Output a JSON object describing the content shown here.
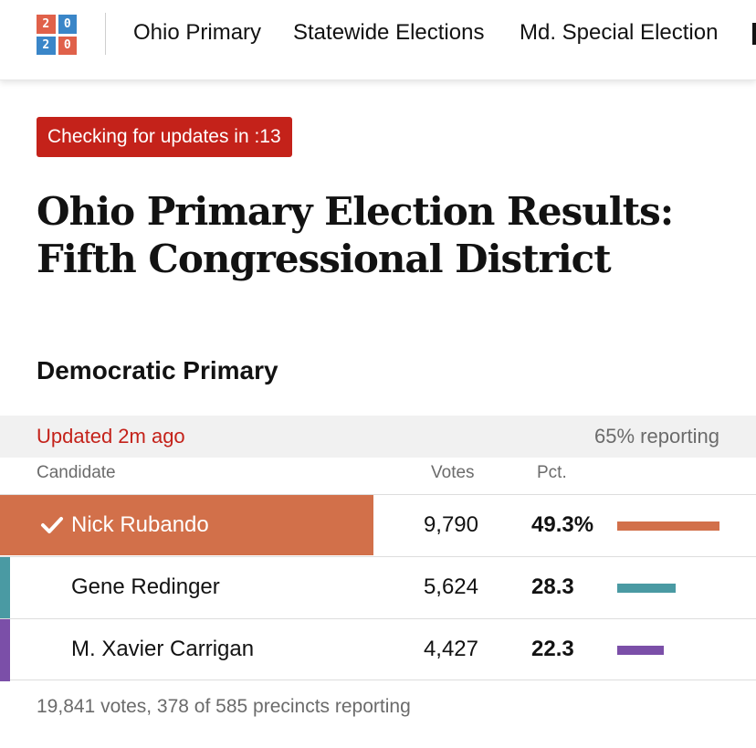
{
  "logo": {
    "digits": [
      "2",
      "0",
      "2",
      "0"
    ]
  },
  "nav": {
    "items": [
      "Ohio Primary",
      "Statewide Elections",
      "Md. Special Election"
    ]
  },
  "update_badge": "Checking for updates in :13",
  "headline": {
    "line1": "Ohio Primary Election Results:",
    "line2": "Fifth Congressional District"
  },
  "section_title": "Democratic Primary",
  "status": {
    "updated": "Updated 2m ago",
    "reporting": "65% reporting"
  },
  "columns": {
    "candidate": "Candidate",
    "votes": "Votes",
    "pct": "Pct."
  },
  "candidates": [
    {
      "name": "Nick Rubando",
      "votes": "9,790",
      "pct_label": "49.3%",
      "pct": 49.3,
      "winner": true,
      "color": "#d2704a"
    },
    {
      "name": "Gene Redinger",
      "votes": "5,624",
      "pct_label": "28.3",
      "pct": 28.3,
      "winner": false,
      "color": "#4a9aa3"
    },
    {
      "name": "M. Xavier Carrigan",
      "votes": "4,427",
      "pct_label": "22.3",
      "pct": 22.3,
      "winner": false,
      "color": "#7b4fa8"
    }
  ],
  "footer": "19,841 votes, 378 of 585 precincts reporting"
}
